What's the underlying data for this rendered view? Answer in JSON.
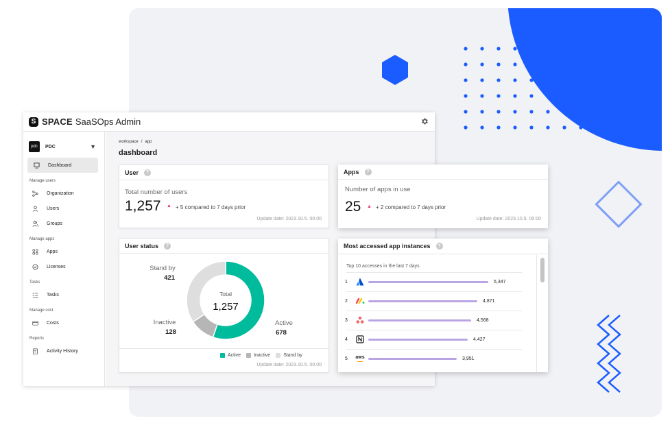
{
  "app": {
    "brand": "SPACE",
    "title": "SaaSOps Admin"
  },
  "workspace": {
    "name": "PDC",
    "logo_text": "pdc"
  },
  "sidebar": {
    "dashboard": "Dashboard",
    "sections": [
      {
        "title": "Manage users",
        "items": [
          {
            "label": "Organization",
            "icon": "organization-icon"
          },
          {
            "label": "Users",
            "icon": "user-icon"
          },
          {
            "label": "Groups",
            "icon": "groups-icon"
          }
        ]
      },
      {
        "title": "Manage apps",
        "items": [
          {
            "label": "Apps",
            "icon": "apps-icon"
          },
          {
            "label": "Licenses",
            "icon": "license-icon"
          }
        ]
      },
      {
        "title": "Tasks",
        "items": [
          {
            "label": "Tasks",
            "icon": "tasks-icon"
          }
        ]
      },
      {
        "title": "Manage cost",
        "items": [
          {
            "label": "Costs",
            "icon": "costs-icon"
          }
        ]
      },
      {
        "title": "Reports",
        "items": [
          {
            "label": "Activity History",
            "icon": "history-icon"
          }
        ]
      }
    ]
  },
  "breadcrumb": {
    "a": "workspace",
    "sep": "/",
    "b": "app"
  },
  "page_title": "dashboard",
  "user_card": {
    "title": "User",
    "label": "Total number of users",
    "value": "1,257",
    "delta": "+ 5 compared to 7 days prior",
    "update": "Update date: 2023.10.5. 00:00"
  },
  "apps_card": {
    "title": "Apps",
    "label": "Number of apps in use",
    "value": "25",
    "delta": "+ 2 compared to 7 days prior",
    "update": "Update date: 2023.10.5. 00:00"
  },
  "status_card": {
    "title": "User status",
    "center_label": "Total",
    "center_value": "1,257",
    "standby_label": "Stand by",
    "standby_value": "421",
    "inactive_label": "Inactive",
    "inactive_value": "128",
    "active_label": "Active",
    "active_value": "678",
    "legend": [
      "Active",
      "Inactive",
      "Stand by"
    ],
    "update": "Update date: 2023.10.5. 00:00",
    "colors": {
      "active": "#00bb9c",
      "inactive": "#b6b6b6",
      "standby": "#dedede"
    }
  },
  "chart_data": {
    "type": "pie",
    "labels": [
      "Active",
      "Inactive",
      "Stand by"
    ],
    "values": [
      678,
      128,
      421
    ],
    "title": "User status"
  },
  "top_apps": {
    "title": "Most accessed app instances",
    "subtitle": "Top 10 accesses in the last 7 days",
    "max": 5347,
    "rows": [
      {
        "rank": "1",
        "icon": "atlassian-icon",
        "value": 5347,
        "label": "5,347"
      },
      {
        "rank": "2",
        "icon": "monday-icon",
        "value": 4871,
        "label": "4,871"
      },
      {
        "rank": "3",
        "icon": "asana-icon",
        "value": 4568,
        "label": "4,568"
      },
      {
        "rank": "4",
        "icon": "notion-icon",
        "value": 4427,
        "label": "4,427"
      },
      {
        "rank": "5",
        "icon": "aws-icon",
        "value": 3951,
        "label": "3,951",
        "logo_text": "aws"
      }
    ]
  }
}
